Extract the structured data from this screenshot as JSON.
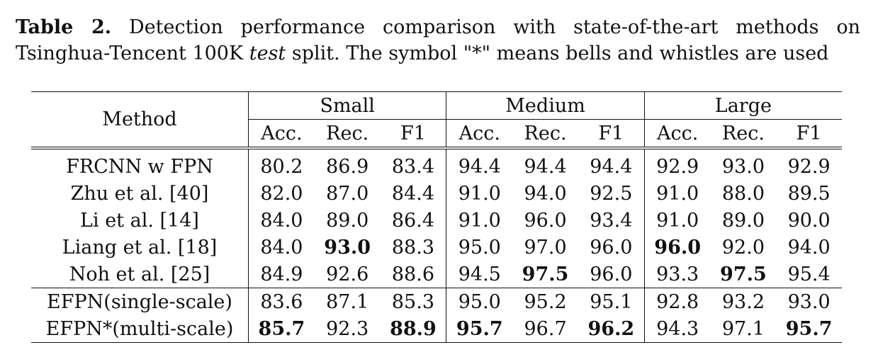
{
  "caption": {
    "label": "Table 2.",
    "text_before": "Detection performance comparison with state-of-the-art methods on Tsinghua-Tencent 100K",
    "italic": "test",
    "text_after": "split. The symbol \"*\" means bells and whistles are used"
  },
  "table": {
    "method_header": "Method",
    "groups": [
      "Small",
      "Medium",
      "Large"
    ],
    "subheaders": [
      "Acc.",
      "Rec.",
      "F1"
    ],
    "rows": [
      {
        "method": "FRCNN w FPN",
        "values": [
          "80.2",
          "86.9",
          "83.4",
          "94.4",
          "94.4",
          "94.4",
          "92.9",
          "93.0",
          "92.9"
        ]
      },
      {
        "method": "Zhu et al. [40]",
        "values": [
          "82.0",
          "87.0",
          "84.4",
          "91.0",
          "94.0",
          "92.5",
          "91.0",
          "88.0",
          "89.5"
        ]
      },
      {
        "method": "Li et al. [14]",
        "values": [
          "84.0",
          "89.0",
          "86.4",
          "91.0",
          "96.0",
          "93.4",
          "91.0",
          "89.0",
          "90.0"
        ]
      },
      {
        "method": "Liang et al. [18]",
        "values": [
          "84.0",
          "93.0",
          "88.3",
          "95.0",
          "97.0",
          "96.0",
          "96.0",
          "92.0",
          "94.0"
        ]
      },
      {
        "method": "Noh et al. [25]",
        "values": [
          "84.9",
          "92.6",
          "88.6",
          "94.5",
          "97.5",
          "96.0",
          "93.3",
          "97.5",
          "95.4"
        ]
      },
      {
        "method": "EFPN(single-scale)",
        "values": [
          "83.6",
          "87.1",
          "85.3",
          "95.0",
          "95.2",
          "95.1",
          "92.8",
          "93.2",
          "93.0"
        ]
      },
      {
        "method": "EFPN*(multi-scale)",
        "values": [
          "85.7",
          "92.3",
          "88.9",
          "95.7",
          "96.7",
          "96.2",
          "94.3",
          "97.1",
          "95.7"
        ]
      }
    ],
    "bold_cells": {
      "3": [
        1,
        6
      ],
      "4": [
        4,
        7
      ],
      "6": [
        0,
        2,
        3,
        5,
        8
      ]
    }
  }
}
